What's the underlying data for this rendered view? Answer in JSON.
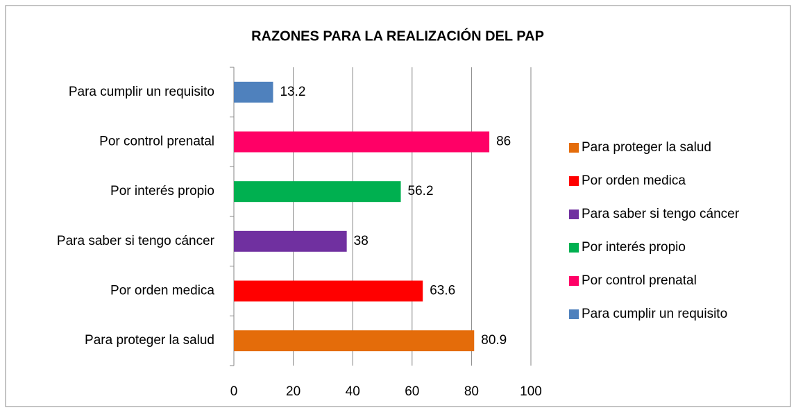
{
  "chart_data": {
    "type": "barh",
    "title": "RAZONES PARA LA REALIZACIÓN DEL PAP",
    "categories": [
      "Para proteger la salud",
      "Por orden medica",
      "Para saber si tengo cáncer",
      "Por interés propio",
      "Por control prenatal",
      "Para cumplir un requisito"
    ],
    "values": [
      80.9,
      63.6,
      38,
      56.2,
      86,
      13.2
    ],
    "colors": [
      "#E46C0A",
      "#FF0000",
      "#7030A0",
      "#00B050",
      "#FF0066",
      "#4F81BD"
    ],
    "xlim": [
      0,
      100
    ],
    "xticks": [
      0,
      20,
      40,
      60,
      80,
      100
    ],
    "grid": true,
    "legend": "right"
  }
}
